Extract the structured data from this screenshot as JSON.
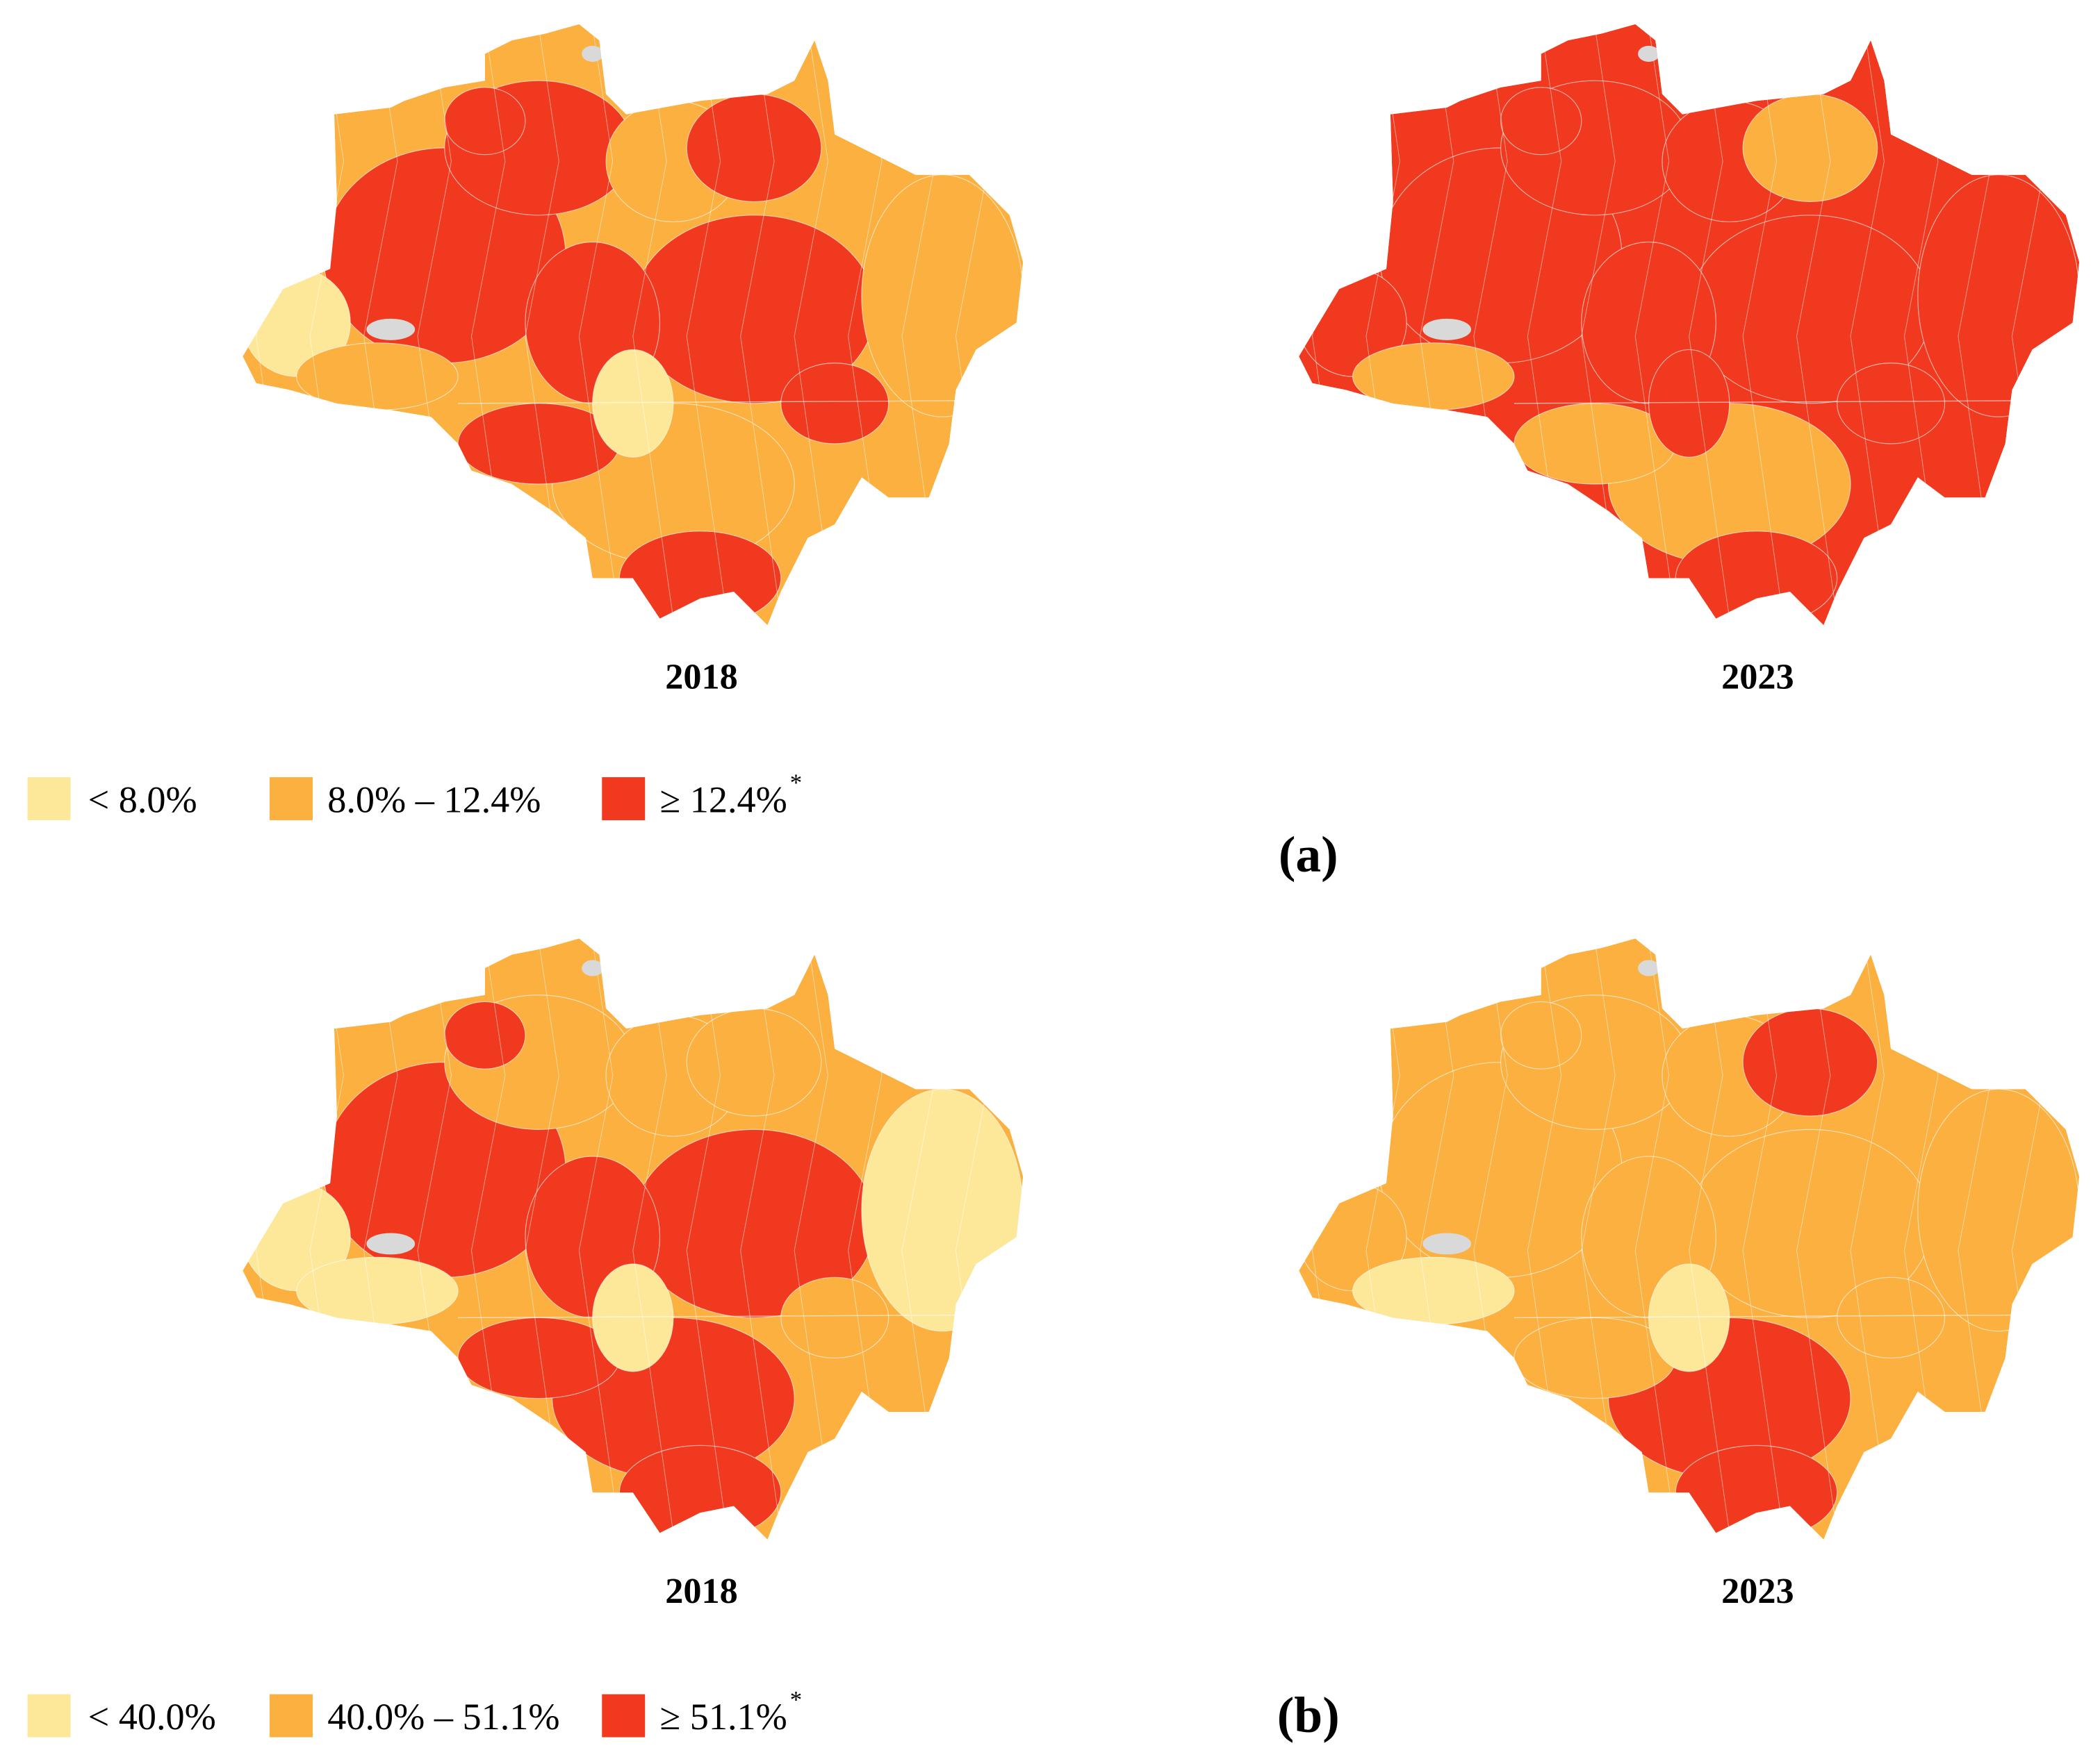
{
  "panels": [
    {
      "label": "(a)",
      "maps": [
        {
          "year": "2018"
        },
        {
          "year": "2023"
        }
      ],
      "legend": [
        {
          "label": "< 8.0%",
          "color": "#fde89a"
        },
        {
          "label": "8.0% – 12.4%",
          "color": "#fbb040"
        },
        {
          "label": "≥ 12.4%",
          "color": "#f0391e",
          "marker": "*"
        }
      ]
    },
    {
      "label": "(b)",
      "maps": [
        {
          "year": "2018"
        },
        {
          "year": "2023"
        }
      ],
      "legend": [
        {
          "label": "< 40.0%",
          "color": "#fde89a"
        },
        {
          "label": "40.0% – 51.1%",
          "color": "#fbb040"
        },
        {
          "label": "≥ 51.1%",
          "color": "#f0391e",
          "marker": "*"
        }
      ]
    }
  ]
}
